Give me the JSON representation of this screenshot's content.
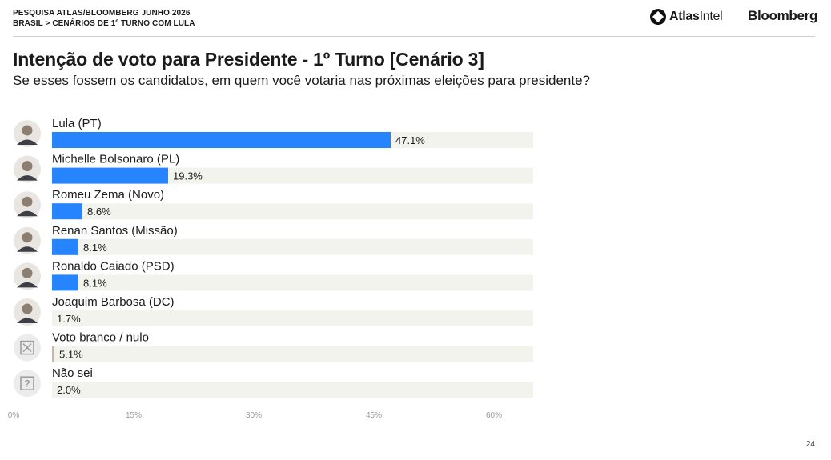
{
  "header": {
    "survey_line1": "PESQUISA ATLAS/BLOOMBERG JUNHO 2026",
    "survey_line2": "BRASIL > CENÁRIOS DE 1º TURNO COM LULA",
    "logo_atlas_bold": "Atlas",
    "logo_atlas_light": "Intel",
    "logo_bloomberg": "Bloomberg"
  },
  "page_number": "24",
  "colors": {
    "candidate": "#2684ff",
    "blank_null": "#c4b8b0",
    "dont_know": "#f5b83d",
    "track": "#f3f3ee"
  },
  "chart_data": {
    "type": "bar",
    "orientation": "horizontal",
    "title": "Intenção de voto para Presidente - 1º Turno [Cenário 3]",
    "subtitle": "Se esses fossem os candidatos, em quem você votaria nas próximas eleições para presidente?",
    "xlim": [
      0,
      65
    ],
    "xticks": [
      0,
      15,
      30,
      45,
      60
    ],
    "xtick_labels": [
      "0%",
      "15%",
      "30%",
      "45%",
      "60%"
    ],
    "grid": false,
    "legend": "none",
    "categories": [
      "Lula (PT)",
      "Michelle Bolsonaro (PL)",
      "Romeu Zema (Novo)",
      "Renan Santos (Missão)",
      "Ronaldo Caiado (PSD)",
      "Joaquim Barbosa (DC)",
      "Voto branco / nulo",
      "Não sei"
    ],
    "values": [
      47.1,
      19.3,
      8.6,
      8.1,
      8.1,
      1.7,
      5.1,
      2.0
    ],
    "value_labels": [
      "47.1%",
      "19.3%",
      "8.6%",
      "8.1%",
      "8.1%",
      "1.7%",
      "5.1%",
      "2.0%"
    ],
    "bar_colors": [
      "#2684ff",
      "#2684ff",
      "#2684ff",
      "#2684ff",
      "#2684ff",
      "#2684ff",
      "#c4b8b0",
      "#f5b83d"
    ],
    "icons": [
      "avatar-photo",
      "avatar-photo",
      "avatar-photo",
      "avatar-photo",
      "avatar-photo",
      "avatar-photo",
      "x-box-icon",
      "question-box-icon"
    ]
  }
}
